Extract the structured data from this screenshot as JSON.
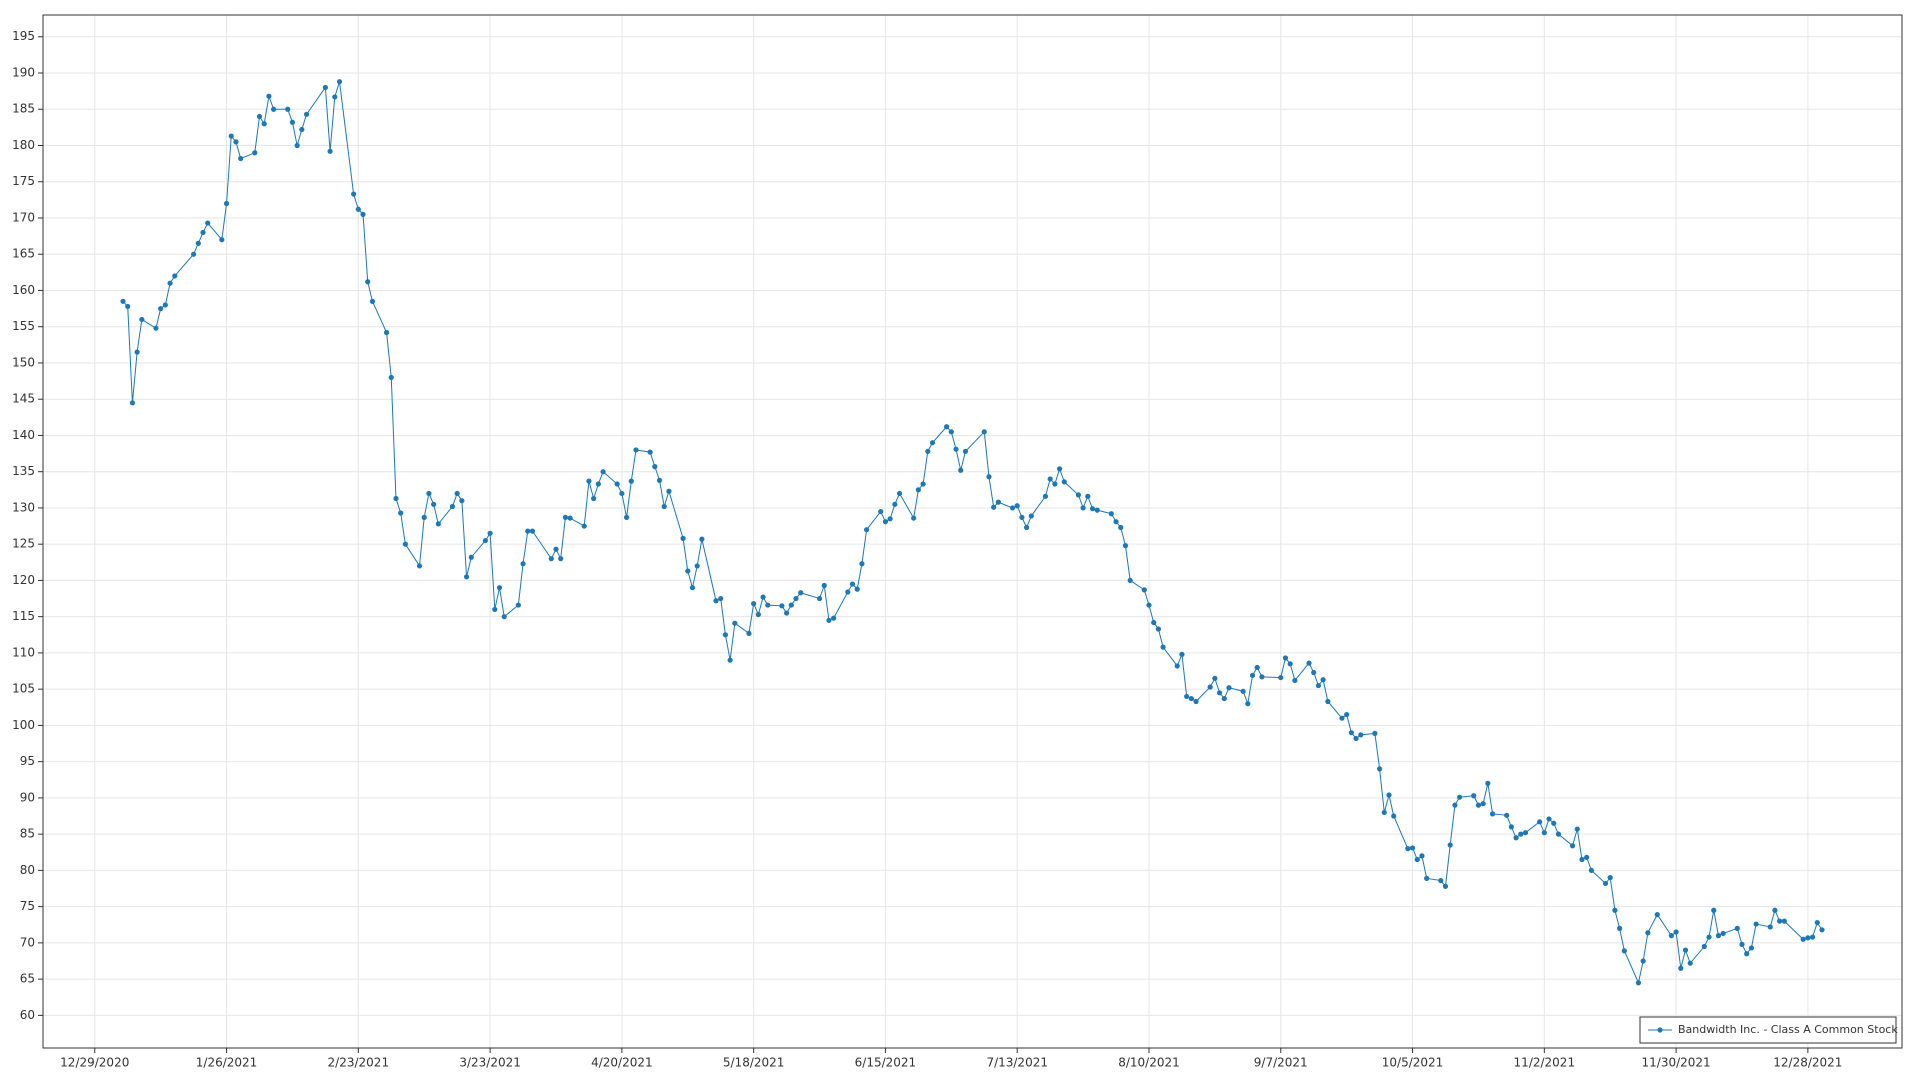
{
  "chart_data": {
    "type": "line",
    "x": [
      "1/4/2021",
      "1/5/2021",
      "1/6/2021",
      "1/7/2021",
      "1/8/2021",
      "1/11/2021",
      "1/12/2021",
      "1/13/2021",
      "1/14/2021",
      "1/15/2021",
      "1/19/2021",
      "1/20/2021",
      "1/21/2021",
      "1/22/2021",
      "1/25/2021",
      "1/26/2021",
      "1/27/2021",
      "1/28/2021",
      "1/29/2021",
      "2/1/2021",
      "2/2/2021",
      "2/3/2021",
      "2/4/2021",
      "2/5/2021",
      "2/8/2021",
      "2/9/2021",
      "2/10/2021",
      "2/11/2021",
      "2/12/2021",
      "2/16/2021",
      "2/17/2021",
      "2/18/2021",
      "2/19/2021",
      "2/22/2021",
      "2/23/2021",
      "2/24/2021",
      "2/25/2021",
      "2/26/2021",
      "3/1/2021",
      "3/2/2021",
      "3/3/2021",
      "3/4/2021",
      "3/5/2021",
      "3/8/2021",
      "3/9/2021",
      "3/10/2021",
      "3/11/2021",
      "3/12/2021",
      "3/15/2021",
      "3/16/2021",
      "3/17/2021",
      "3/18/2021",
      "3/19/2021",
      "3/22/2021",
      "3/23/2021",
      "3/24/2021",
      "3/25/2021",
      "3/26/2021",
      "3/29/2021",
      "3/30/2021",
      "3/31/2021",
      "4/1/2021",
      "4/5/2021",
      "4/6/2021",
      "4/7/2021",
      "4/8/2021",
      "4/9/2021",
      "4/12/2021",
      "4/13/2021",
      "4/14/2021",
      "4/15/2021",
      "4/16/2021",
      "4/19/2021",
      "4/20/2021",
      "4/21/2021",
      "4/22/2021",
      "4/23/2021",
      "4/26/2021",
      "4/27/2021",
      "4/28/2021",
      "4/29/2021",
      "4/30/2021",
      "5/3/2021",
      "5/4/2021",
      "5/5/2021",
      "5/6/2021",
      "5/7/2021",
      "5/10/2021",
      "5/11/2021",
      "5/12/2021",
      "5/13/2021",
      "5/14/2021",
      "5/17/2021",
      "5/18/2021",
      "5/19/2021",
      "5/20/2021",
      "5/21/2021",
      "5/24/2021",
      "5/25/2021",
      "5/26/2021",
      "5/27/2021",
      "5/28/2021",
      "6/1/2021",
      "6/2/2021",
      "6/3/2021",
      "6/4/2021",
      "6/7/2021",
      "6/8/2021",
      "6/9/2021",
      "6/10/2021",
      "6/11/2021",
      "6/14/2021",
      "6/15/2021",
      "6/16/2021",
      "6/17/2021",
      "6/18/2021",
      "6/21/2021",
      "6/22/2021",
      "6/23/2021",
      "6/24/2021",
      "6/25/2021",
      "6/28/2021",
      "6/29/2021",
      "6/30/2021",
      "7/1/2021",
      "7/2/2021",
      "7/6/2021",
      "7/7/2021",
      "7/8/2021",
      "7/9/2021",
      "7/12/2021",
      "7/13/2021",
      "7/14/2021",
      "7/15/2021",
      "7/16/2021",
      "7/19/2021",
      "7/20/2021",
      "7/21/2021",
      "7/22/2021",
      "7/23/2021",
      "7/26/2021",
      "7/27/2021",
      "7/28/2021",
      "7/29/2021",
      "7/30/2021",
      "8/2/2021",
      "8/3/2021",
      "8/4/2021",
      "8/5/2021",
      "8/6/2021",
      "8/9/2021",
      "8/10/2021",
      "8/11/2021",
      "8/12/2021",
      "8/13/2021",
      "8/16/2021",
      "8/17/2021",
      "8/18/2021",
      "8/19/2021",
      "8/20/2021",
      "8/23/2021",
      "8/24/2021",
      "8/25/2021",
      "8/26/2021",
      "8/27/2021",
      "8/30/2021",
      "8/31/2021",
      "9/1/2021",
      "9/2/2021",
      "9/3/2021",
      "9/7/2021",
      "9/8/2021",
      "9/9/2021",
      "9/10/2021",
      "9/13/2021",
      "9/14/2021",
      "9/15/2021",
      "9/16/2021",
      "9/17/2021",
      "9/20/2021",
      "9/21/2021",
      "9/22/2021",
      "9/23/2021",
      "9/24/2021",
      "9/27/2021",
      "9/28/2021",
      "9/29/2021",
      "9/30/2021",
      "10/1/2021",
      "10/4/2021",
      "10/5/2021",
      "10/6/2021",
      "10/7/2021",
      "10/8/2021",
      "10/11/2021",
      "10/12/2021",
      "10/13/2021",
      "10/14/2021",
      "10/15/2021",
      "10/18/2021",
      "10/19/2021",
      "10/20/2021",
      "10/21/2021",
      "10/22/2021",
      "10/25/2021",
      "10/26/2021",
      "10/27/2021",
      "10/28/2021",
      "10/29/2021",
      "11/1/2021",
      "11/2/2021",
      "11/3/2021",
      "11/4/2021",
      "11/5/2021",
      "11/8/2021",
      "11/9/2021",
      "11/10/2021",
      "11/11/2021",
      "11/12/2021",
      "11/15/2021",
      "11/16/2021",
      "11/17/2021",
      "11/18/2021",
      "11/19/2021",
      "11/22/2021",
      "11/23/2021",
      "11/24/2021",
      "11/26/2021",
      "11/29/2021",
      "11/30/2021",
      "12/1/2021",
      "12/2/2021",
      "12/3/2021",
      "12/6/2021",
      "12/7/2021",
      "12/8/2021",
      "12/9/2021",
      "12/10/2021",
      "12/13/2021",
      "12/14/2021",
      "12/15/2021",
      "12/16/2021",
      "12/17/2021",
      "12/20/2021",
      "12/21/2021",
      "12/22/2021",
      "12/23/2021",
      "12/27/2021",
      "12/28/2021",
      "12/29/2021",
      "12/30/2021",
      "12/31/2021"
    ],
    "series": [
      {
        "name": "Bandwidth Inc. - Class A Common Stock",
        "color": "#1f77b4",
        "values": [
          158.5,
          157.8,
          144.5,
          151.5,
          156,
          154.8,
          157.5,
          158,
          161,
          162,
          165,
          166.5,
          168,
          169.3,
          167,
          172,
          181.3,
          180.5,
          178.2,
          179,
          184,
          183,
          186.8,
          185,
          185,
          183.2,
          180,
          182.2,
          184.3,
          188,
          179.2,
          186.7,
          188.8,
          173.3,
          171.2,
          170.5,
          161.2,
          158.5,
          154.2,
          148,
          131.3,
          129.3,
          125,
          122,
          128.7,
          132,
          130.5,
          127.8,
          130.2,
          132,
          131,
          120.5,
          123.2,
          125.5,
          126.5,
          116,
          119,
          115,
          116.6,
          122.3,
          126.8,
          126.8,
          123,
          124.3,
          123,
          128.7,
          128.6,
          127.5,
          133.7,
          131.3,
          133.3,
          135,
          133.3,
          132,
          128.7,
          133.7,
          138,
          137.7,
          135.7,
          133.8,
          130.2,
          132.3,
          125.8,
          121.3,
          119,
          122,
          125.7,
          117.2,
          117.5,
          112.5,
          109,
          114.1,
          112.7,
          116.8,
          115.3,
          117.7,
          116.6,
          116.5,
          115.5,
          116.6,
          117.5,
          118.3,
          117.5,
          119.3,
          114.5,
          114.8,
          118.4,
          119.5,
          118.8,
          122.3,
          127,
          129.5,
          128.1,
          128.5,
          130.5,
          132,
          128.6,
          132.5,
          133.3,
          137.8,
          139,
          141.2,
          140.5,
          138.1,
          135.2,
          137.8,
          140.5,
          134.3,
          130.1,
          130.8,
          130,
          130.3,
          128.7,
          127.3,
          128.9,
          131.6,
          134,
          133.3,
          135.4,
          133.6,
          131.8,
          130,
          131.6,
          129.9,
          129.7,
          129.2,
          128.1,
          127.3,
          124.8,
          120,
          118.7,
          116.6,
          114.2,
          113.3,
          110.8,
          108.2,
          109.8,
          104,
          103.7,
          103.3,
          105.3,
          106.5,
          104.5,
          103.7,
          105.2,
          104.7,
          103,
          106.9,
          108,
          106.7,
          106.6,
          109.3,
          108.5,
          106.2,
          108.6,
          107.3,
          105.5,
          106.3,
          103.3,
          101,
          101.5,
          99,
          98.2,
          98.7,
          98.9,
          94,
          88,
          90.4,
          87.5,
          83,
          83.1,
          81.5,
          82,
          78.9,
          78.6,
          77.8,
          83.5,
          89,
          90.1,
          90.3,
          89,
          89.2,
          92,
          87.8,
          87.6,
          86,
          84.5,
          85,
          85.2,
          86.7,
          85.2,
          87.1,
          86.5,
          85,
          83.4,
          85.7,
          81.5,
          81.8,
          80,
          78.2,
          79,
          74.5,
          72,
          68.9,
          64.5,
          67.5,
          71.4,
          73.9,
          71,
          71.5,
          66.5,
          69,
          67.2,
          69.5,
          70.8,
          74.5,
          71,
          71.3,
          72,
          69.8,
          68.5,
          69.3,
          72.6,
          72.2,
          74.5,
          73,
          73,
          70.5,
          70.7,
          70.8,
          72.8,
          71.8
        ]
      }
    ],
    "xlim": [
      "12/18/2020",
      "1/17/2022"
    ],
    "xticks": [
      "12/29/2020",
      "1/26/2021",
      "2/23/2021",
      "3/23/2021",
      "4/20/2021",
      "5/18/2021",
      "6/15/2021",
      "7/13/2021",
      "8/10/2021",
      "9/7/2021",
      "10/5/2021",
      "11/2/2021",
      "11/30/2021",
      "12/28/2021"
    ],
    "ylim": [
      55.5,
      198
    ],
    "yticks": [
      60,
      65,
      70,
      75,
      80,
      85,
      90,
      95,
      100,
      105,
      110,
      115,
      120,
      125,
      130,
      135,
      140,
      145,
      150,
      155,
      160,
      165,
      170,
      175,
      180,
      185,
      190,
      195
    ],
    "grid": true,
    "legend": "lower right"
  }
}
